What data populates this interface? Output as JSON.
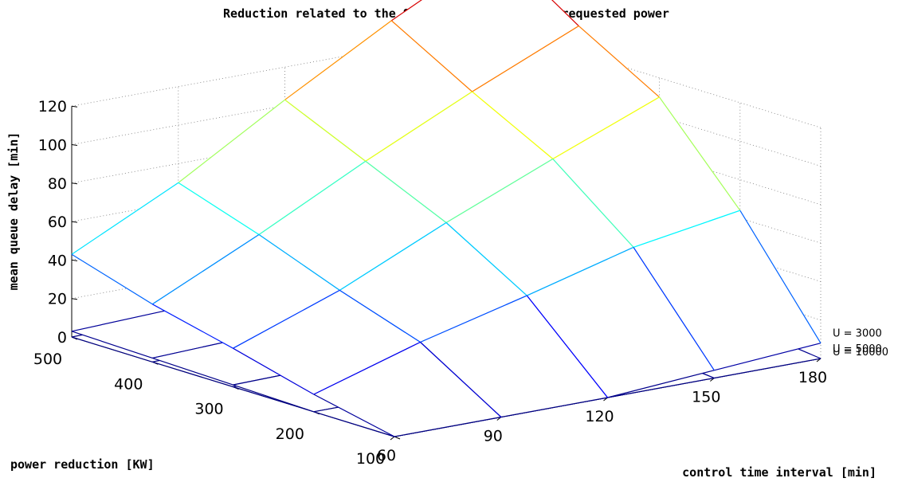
{
  "chart_data": {
    "type": "surface3d",
    "title": "Reduction related to the 90% percentile of the requested power",
    "xlabel": "control time interval [min]",
    "ylabel": "power reduction [KW]",
    "zlabel": "mean queue delay [min]",
    "x": [
      60,
      90,
      120,
      150,
      180
    ],
    "y": [
      100,
      200,
      300,
      400,
      500
    ],
    "zlim": [
      0,
      120
    ],
    "x_ticks": [
      "60",
      "90",
      "120",
      "150",
      "180"
    ],
    "y_ticks": [
      "100",
      "200",
      "300",
      "400",
      "500"
    ],
    "z_ticks": [
      "0",
      "20",
      "40",
      "60",
      "80",
      "100",
      "120"
    ],
    "grid": true,
    "colormap": "jet",
    "series": [
      {
        "name": "U = 3000",
        "z": [
          [
            0,
            0,
            0,
            4,
            8
          ],
          [
            9,
            26,
            40,
            55,
            64
          ],
          [
            20,
            40,
            65,
            88,
            110
          ],
          [
            30,
            56,
            84,
            110,
            134
          ],
          [
            43,
            70,
            103,
            134,
            162
          ]
        ]
      },
      {
        "name": "U = 5000",
        "z": [
          [
            0,
            0,
            0,
            0,
            0
          ],
          [
            0,
            0,
            2,
            4,
            5
          ],
          [
            1,
            2,
            4,
            6,
            7
          ],
          [
            2,
            4,
            6,
            8,
            9
          ],
          [
            3,
            5,
            8,
            11,
            13
          ]
        ]
      },
      {
        "name": "U = 10000",
        "z": [
          [
            0,
            0,
            0,
            0,
            0
          ],
          [
            0,
            0,
            0,
            1,
            1
          ],
          [
            0,
            0,
            1,
            2,
            2
          ],
          [
            0,
            1,
            2,
            3,
            3
          ],
          [
            0,
            1,
            2,
            3,
            3
          ]
        ]
      }
    ]
  }
}
